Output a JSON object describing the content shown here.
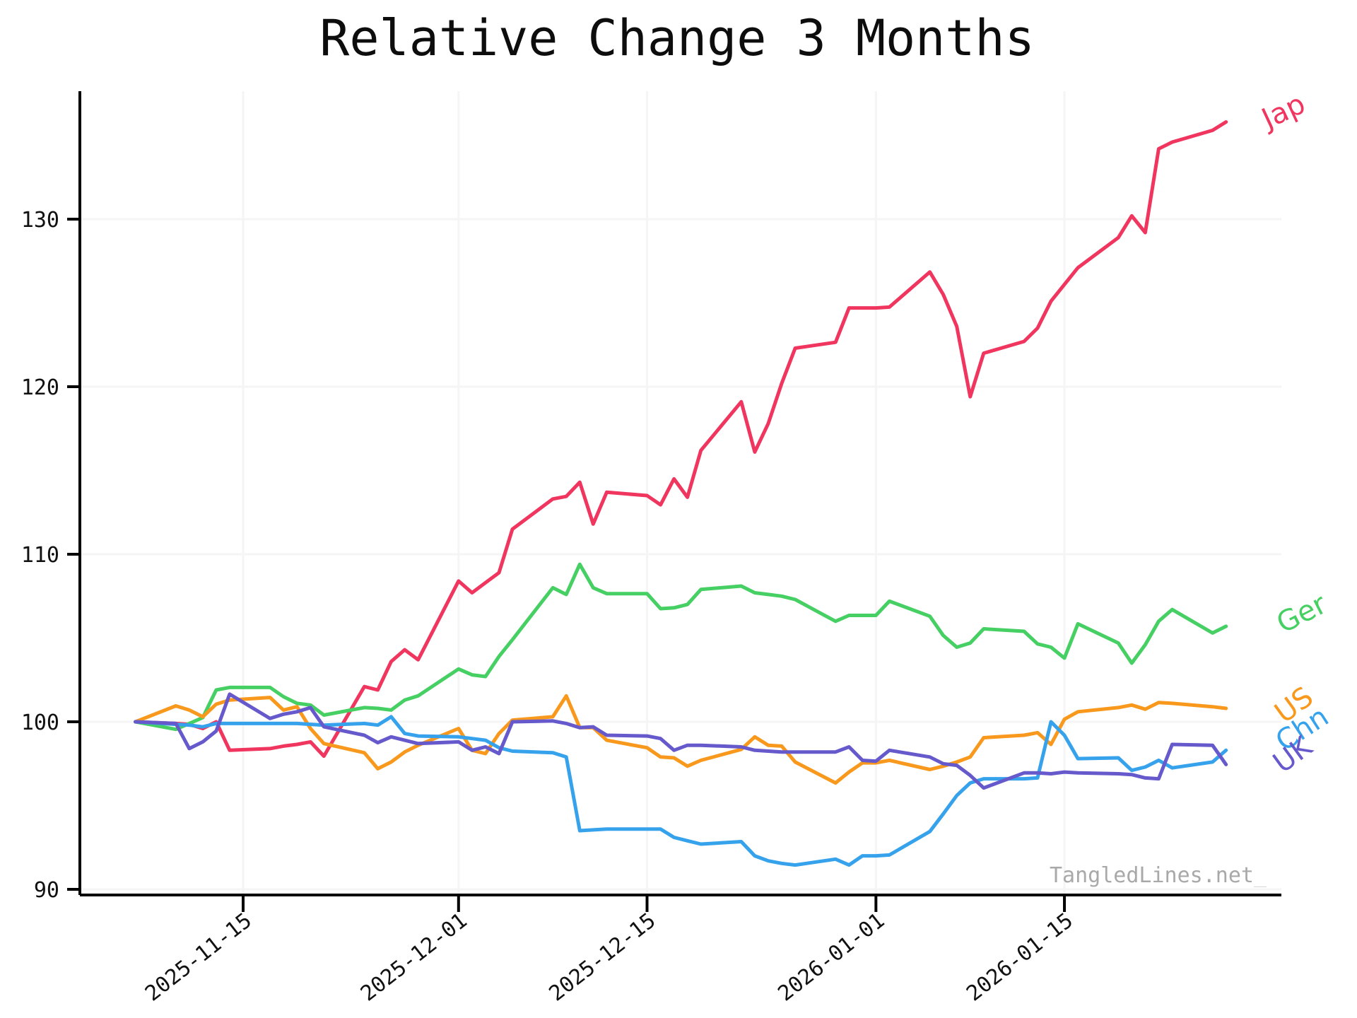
{
  "watermark": {
    "text": "TangledLines.net",
    "cursor": "_"
  },
  "chart_data": {
    "type": "line",
    "title": "Relative Change 3 Months",
    "xlabel": "",
    "ylabel": "",
    "grid": true,
    "grid_color": "#f5f5f5",
    "axis_color": "#000000",
    "legend_position": "line-end-labels",
    "ylim": [
      88.8,
      137.2
    ],
    "y_ticks": [
      90,
      100,
      110,
      120,
      130
    ],
    "x_tick_labels": [
      "2025-11-15",
      "2025-12-01",
      "2025-12-15",
      "2026-01-01",
      "2026-01-15"
    ],
    "x": [
      "2025-11-07",
      "2025-11-10",
      "2025-11-11",
      "2025-11-12",
      "2025-11-13",
      "2025-11-14",
      "2025-11-17",
      "2025-11-18",
      "2025-11-19",
      "2025-11-20",
      "2025-11-21",
      "2025-11-24",
      "2025-11-25",
      "2025-11-26",
      "2025-11-27",
      "2025-11-28",
      "2025-12-01",
      "2025-12-02",
      "2025-12-03",
      "2025-12-04",
      "2025-12-05",
      "2025-12-08",
      "2025-12-09",
      "2025-12-10",
      "2025-12-11",
      "2025-12-12",
      "2025-12-15",
      "2025-12-16",
      "2025-12-17",
      "2025-12-18",
      "2025-12-19",
      "2025-12-22",
      "2025-12-23",
      "2025-12-24",
      "2025-12-25",
      "2025-12-26",
      "2025-12-29",
      "2025-12-30",
      "2025-12-31",
      "2026-01-01",
      "2026-01-02",
      "2026-01-05",
      "2026-01-06",
      "2026-01-07",
      "2026-01-08",
      "2026-01-09",
      "2026-01-12",
      "2026-01-13",
      "2026-01-14",
      "2026-01-15",
      "2026-01-16",
      "2026-01-19",
      "2026-01-20",
      "2026-01-21",
      "2026-01-22",
      "2026-01-23",
      "2026-01-26",
      "2026-01-27"
    ],
    "series": [
      {
        "name": "Jap",
        "color": "#f0355f",
        "values": [
          100.0,
          99.9,
          99.85,
          99.6,
          100.0,
          98.3,
          98.4,
          98.55,
          98.65,
          98.8,
          97.95,
          102.1,
          101.9,
          103.6,
          104.3,
          103.7,
          108.4,
          107.7,
          108.3,
          108.9,
          111.5,
          113.3,
          113.45,
          114.3,
          111.8,
          113.7,
          113.5,
          112.95,
          114.5,
          113.4,
          116.2,
          119.1,
          116.1,
          117.8,
          120.2,
          122.3,
          122.65,
          124.7,
          124.7,
          124.7,
          124.75,
          126.85,
          125.5,
          123.6,
          119.4,
          122.0,
          122.7,
          123.5,
          125.1,
          126.1,
          127.1,
          128.9,
          130.2,
          129.2,
          134.2,
          134.6,
          135.3,
          135.8
        ]
      },
      {
        "name": "Ger",
        "color": "#46cf63",
        "values": [
          100.0,
          99.55,
          99.9,
          100.25,
          101.9,
          102.05,
          102.05,
          101.5,
          101.1,
          101.0,
          100.4,
          100.85,
          100.8,
          100.7,
          101.3,
          101.55,
          103.15,
          102.8,
          102.7,
          103.9,
          104.9,
          108.0,
          107.6,
          109.4,
          108.0,
          107.65,
          107.65,
          106.75,
          106.8,
          107.0,
          107.9,
          108.1,
          107.7,
          107.6,
          107.5,
          107.3,
          106.0,
          106.35,
          106.35,
          106.35,
          107.2,
          106.3,
          105.15,
          104.45,
          104.7,
          105.55,
          105.4,
          104.65,
          104.45,
          103.8,
          105.85,
          104.7,
          103.5,
          104.6,
          106.0,
          106.7,
          105.3,
          105.7
        ]
      },
      {
        "name": "US",
        "color": "#f8991d",
        "values": [
          100.0,
          100.95,
          100.7,
          100.3,
          101.05,
          101.3,
          101.45,
          100.7,
          100.9,
          99.6,
          98.7,
          98.15,
          97.2,
          97.6,
          98.2,
          98.6,
          99.6,
          98.3,
          98.1,
          99.3,
          100.1,
          100.3,
          101.55,
          99.65,
          99.65,
          98.9,
          98.45,
          97.9,
          97.85,
          97.35,
          97.7,
          98.35,
          99.1,
          98.6,
          98.55,
          97.6,
          96.35,
          97.0,
          97.55,
          97.55,
          97.7,
          97.15,
          97.35,
          97.6,
          97.9,
          99.05,
          99.2,
          99.35,
          98.65,
          100.15,
          100.6,
          100.85,
          101.0,
          100.75,
          101.15,
          101.1,
          100.9,
          100.8
        ]
      },
      {
        "name": "Chn",
        "color": "#36a2ec",
        "values": [
          100.0,
          99.85,
          99.8,
          99.7,
          99.9,
          99.9,
          99.9,
          99.9,
          99.9,
          99.85,
          99.8,
          99.9,
          99.8,
          100.3,
          99.3,
          99.15,
          99.1,
          99.0,
          98.9,
          98.45,
          98.25,
          98.15,
          97.9,
          93.5,
          93.55,
          93.6,
          93.6,
          93.6,
          93.1,
          92.9,
          92.7,
          92.85,
          92.0,
          91.7,
          91.55,
          91.45,
          91.8,
          91.45,
          92.0,
          92.0,
          92.05,
          93.45,
          94.5,
          95.6,
          96.35,
          96.6,
          96.6,
          96.65,
          100.0,
          99.2,
          97.8,
          97.85,
          97.1,
          97.3,
          97.7,
          97.25,
          97.6,
          98.3
        ]
      },
      {
        "name": "UK",
        "color": "#6659cb",
        "values": [
          100.0,
          99.9,
          98.4,
          98.8,
          99.45,
          101.65,
          100.2,
          100.45,
          100.6,
          100.85,
          99.7,
          99.2,
          98.75,
          99.1,
          98.9,
          98.7,
          98.8,
          98.3,
          98.5,
          98.1,
          100.0,
          100.05,
          99.9,
          99.65,
          99.7,
          99.2,
          99.15,
          99.0,
          98.3,
          98.6,
          98.6,
          98.5,
          98.3,
          98.25,
          98.2,
          98.2,
          98.2,
          98.5,
          97.7,
          97.65,
          98.3,
          97.9,
          97.5,
          97.4,
          96.8,
          96.05,
          96.95,
          96.95,
          96.9,
          97.0,
          96.95,
          96.9,
          96.85,
          96.65,
          96.6,
          98.65,
          98.6,
          97.45
        ]
      }
    ]
  }
}
